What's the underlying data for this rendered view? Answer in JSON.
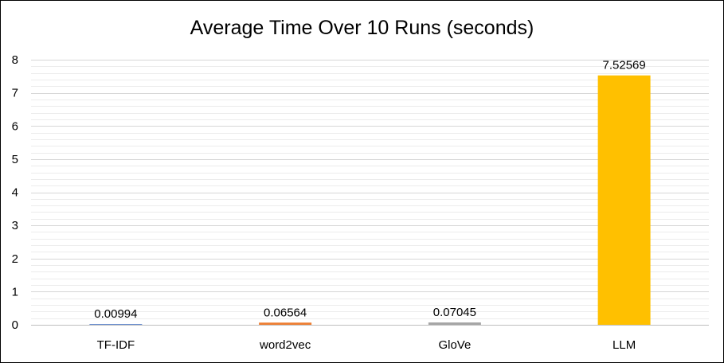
{
  "chart_data": {
    "type": "bar",
    "title": "Average Time Over 10 Runs (seconds)",
    "categories": [
      "TF-IDF",
      "word2vec",
      "GloVe",
      "LLM"
    ],
    "values": [
      0.00994,
      0.06564,
      0.07045,
      7.52569
    ],
    "value_labels": [
      "0.00994",
      "0.06564",
      "0.07045",
      "7.52569"
    ],
    "bar_colors": [
      "#4472C4",
      "#ED7D31",
      "#A5A5A5",
      "#FFC000"
    ],
    "ylim": [
      0,
      8
    ],
    "yticks": [
      "0",
      "1",
      "2",
      "3",
      "4",
      "5",
      "6",
      "7",
      "8"
    ],
    "xlabel": "",
    "ylabel": "",
    "grid": true,
    "legend": "none"
  }
}
